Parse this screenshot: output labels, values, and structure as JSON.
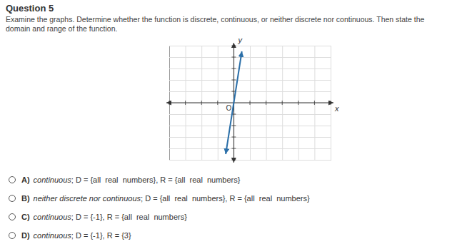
{
  "chart_data": {
    "type": "line",
    "title": "Question 5",
    "subtitle": "Examine the graphs. Determine whether the function is discrete, continuous, or neither discrete nor continuous. Then state the domain and range of the function.",
    "x": [
      -0.5,
      0.5
    ],
    "values": [
      -4.5,
      4.5
    ],
    "color": "#2b6fa8",
    "xlabel": "x",
    "ylabel": "y",
    "annotations": [
      "O"
    ],
    "xlim": [
      -4,
      6
    ],
    "ylim": [
      -5,
      5
    ],
    "xticks": [
      -4,
      -3,
      -2,
      -1,
      0,
      1,
      2,
      3,
      4,
      5,
      6
    ],
    "yticks": [
      -5,
      -4,
      -3,
      -2,
      -1,
      0,
      1,
      2,
      3,
      4,
      5
    ],
    "grid": true,
    "tick_labels": false,
    "choices": [
      [
        "A)",
        "continuous",
        "; D = {all  real  numbers}, R = {all  real  numbers}"
      ],
      [
        "B)",
        "neither discrete nor continuous",
        "; D = {all  real  numbers}, R = {all  real  numbers}"
      ],
      [
        "C)",
        "continuous",
        "; D = {-1}, R = {all  real  numbers}"
      ],
      [
        "D)",
        "continuous",
        "; D = {-1}, R = {3}"
      ]
    ]
  }
}
